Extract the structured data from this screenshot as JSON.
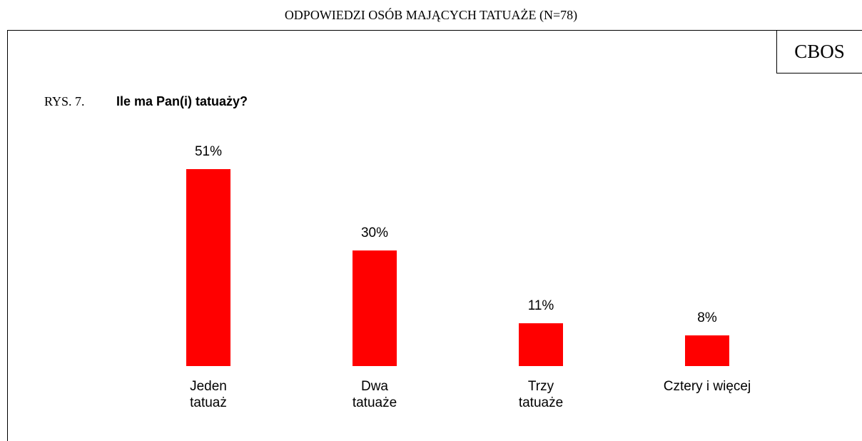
{
  "chart_data": {
    "type": "bar",
    "title": "ODPOWIEDZI OSÓB MAJĄCYCH TATUAŻE (N=78)",
    "source": "CBOS",
    "figure_label": "RYS. 7.",
    "subtitle": "Ile ma Pan(i) tatuaży?",
    "categories": [
      "Jeden\ntatuaż",
      "Dwa\ntatuaże",
      "Trzy\ntatuaże",
      "Cztery i więcej"
    ],
    "values": [
      51,
      30,
      11,
      8
    ],
    "value_labels": [
      "51%",
      "30%",
      "11%",
      "8%"
    ],
    "color": "#ff0000"
  }
}
